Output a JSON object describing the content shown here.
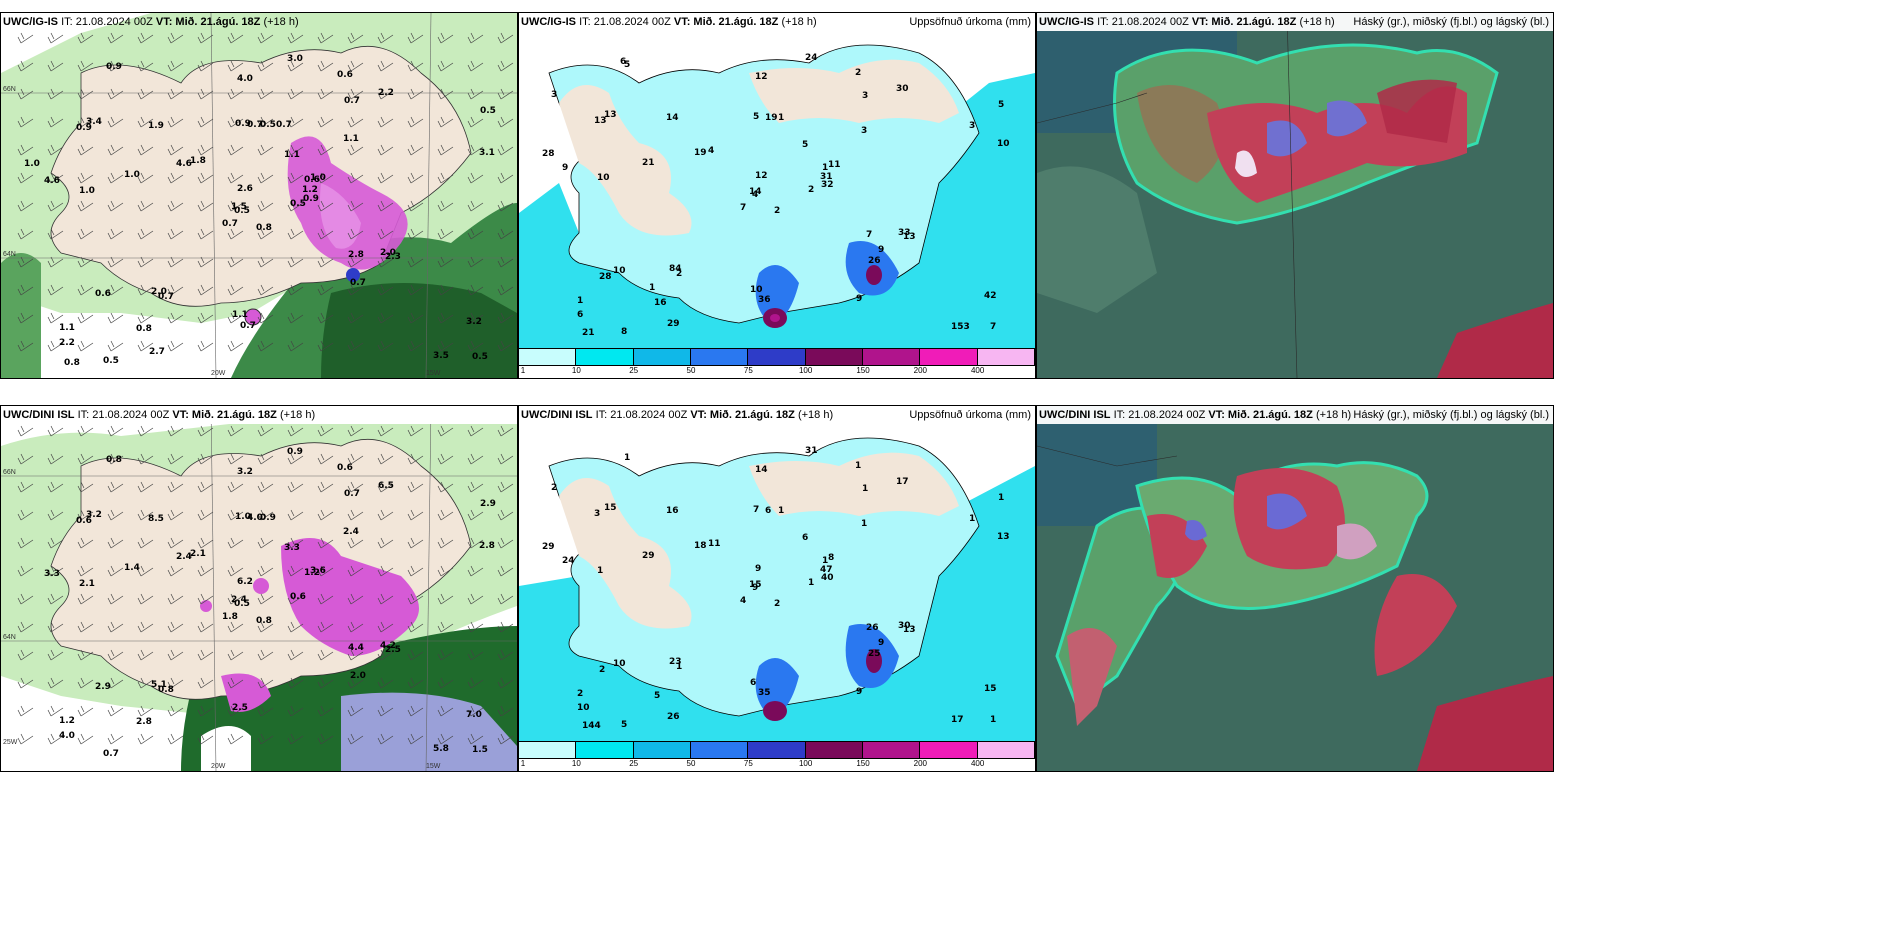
{
  "panels": {
    "p1": {
      "title_model": "UWC/IG-IS",
      "title_meta": "IT: 21.08.2024 00Z",
      "title_vt": "VT: Mið. 21.ágú. 18Z",
      "title_lead": "(+18 h)",
      "title_extra": "h)",
      "right": ""
    },
    "p2": {
      "title_model": "UWC/IG-IS",
      "title_meta": "IT: 21.08.2024 00Z",
      "title_vt": "VT: Mið. 21.ágú. 18Z",
      "title_lead": "(+18 h)",
      "right": "Uppsöfnuð úrkoma (mm)"
    },
    "p3": {
      "title_model": "UWC/IG-IS",
      "title_meta": "IT: 21.08.2024 00Z",
      "title_vt": "VT: Mið. 21.ágú. 18Z",
      "title_lead": "(+18 h)",
      "right": "Háský (gr.), miðský (fj.bl.) og lágský (bl.)"
    },
    "p4": {
      "title_model": "UWC/DINI ISL",
      "title_meta": "IT: 21.08.2024 00Z",
      "title_vt": "VT: Mið. 21.ágú. 18Z",
      "title_lead": "(+18 h)",
      "right": ""
    },
    "p5": {
      "title_model": "UWC/DINI ISL",
      "title_meta": "IT: 21.08.2024 00Z",
      "title_vt": "VT: Mið. 21.ágú. 18Z",
      "title_lead": "(+18 h)",
      "right": "Uppsöfnuð úrkoma (mm)"
    },
    "p6": {
      "title_model": "UWC/DINI ISL",
      "title_meta": "IT: 21.08.2024 00Z",
      "title_vt": "VT: Mið. 21.ágú. 18Z",
      "title_lead": "(+18 h)",
      "right": "Háský (gr.), miðský (fj.bl.) og lágský (bl.)"
    }
  },
  "gridlabels": {
    "lat66": "66N",
    "lat64": "64N",
    "lon20": "20W",
    "lon15": "15W",
    "lon25": "25W"
  },
  "colorbar": {
    "labels": [
      "1",
      "10",
      "25",
      "50",
      "75",
      "100",
      "150",
      "200",
      "400"
    ],
    "colors": [
      "#c8fdfd",
      "#00e8f0",
      "#10b8e8",
      "#2a78f0",
      "#2e3cc8",
      "#7a0a5a",
      "#b0148c",
      "#f01cb8",
      "#f7b6f2"
    ]
  },
  "colors": {
    "land": "#f2e6d9",
    "sea_precip": "#aef8fb",
    "green_light": "#c2e6b8",
    "green_dark": "#1e6b2c",
    "magenta": "#d65ad6",
    "cloud_bg": "#3e6a5e"
  },
  "values": {
    "p1": [
      "0.8",
      "0.9",
      "0.5",
      "1.1",
      "0.6",
      "0.7",
      "0.6",
      "0.50.7",
      "0.7",
      "0.5",
      "0.9",
      "0.5",
      "1.0",
      "0.5",
      "0.7",
      "1.1",
      "0.5",
      "0.9",
      "1.1",
      "0.6",
      "1.8",
      "2.2",
      "0.8",
      "0.7",
      "1.0",
      "2.3",
      "3.4",
      "4.0",
      "4.6",
      "2.8",
      "3.1",
      "1.5",
      "1.1",
      "2.6",
      "1.9",
      "2.2",
      "2.0",
      "3.5",
      "3.2",
      "2.0",
      "3.0",
      "4.6",
      "1.0",
      "0.7",
      "2.7",
      "1.0",
      "1.2",
      "0.8",
      "0.7",
      "0.9"
    ],
    "p2": [
      "2",
      "13",
      "4",
      "1",
      "1",
      "2",
      "2",
      "1",
      "3",
      "2",
      "5",
      "7",
      "10",
      "5",
      "7",
      "3",
      "8",
      "5",
      "5",
      "10",
      "4",
      "6",
      "16",
      "19",
      "11",
      "13",
      "13",
      "12",
      "9",
      "7",
      "10",
      "14",
      "10",
      "12",
      "14",
      "30",
      "84",
      "153",
      "42",
      "33",
      "24",
      "19",
      "21",
      "26",
      "29",
      "28",
      "31",
      "21",
      "36",
      "32",
      "28",
      "3",
      "3",
      "9",
      "9",
      "1",
      "6"
    ],
    "p4": [
      "0.8",
      "0.6",
      "0.5",
      "1.2",
      "1.2",
      "0.8",
      "0.6",
      "0.9",
      "0.7",
      "0.6",
      "0.8",
      "1.5",
      "2.1",
      "2.9",
      "1.8",
      "2.4",
      "0.7",
      "1.0",
      "3.3",
      "2.9",
      "2.1",
      "4.0",
      "2.8",
      "4.0",
      "3.6",
      "2.5",
      "3.2",
      "3.2",
      "3.3",
      "4.4",
      "2.8",
      "2.4",
      "2.5",
      "6.2",
      "8.5",
      "6.5",
      "5.1",
      "5.8",
      "7.0",
      "4.2",
      "0.9",
      "2.4",
      "1.4",
      "2.0"
    ],
    "p5": [
      "2",
      "3",
      "9",
      "2",
      "1",
      "1",
      "1",
      "1",
      "1",
      "1",
      "1",
      "1",
      "1",
      "1",
      "4",
      "1",
      "5",
      "7",
      "6",
      "10",
      "11",
      "10",
      "5",
      "6",
      "8",
      "13",
      "15",
      "14",
      "24",
      "26",
      "13",
      "15",
      "6",
      "9",
      "16",
      "17",
      "23",
      "17",
      "15",
      "30",
      "31",
      "18",
      "29",
      "25",
      "26",
      "29",
      "47",
      "144",
      "35",
      "40",
      "2",
      "1",
      "2",
      "9",
      "9"
    ]
  }
}
